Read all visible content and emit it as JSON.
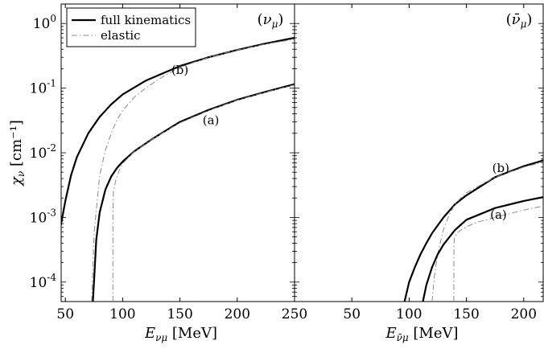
{
  "chart_data": [
    {
      "type": "line",
      "panel_label": "(νμ)",
      "xlabel_main": "E",
      "xlabel_sub": "νμ",
      "xlabel_unit": " [MeV]",
      "ylabel_main": "χ",
      "ylabel_sub": "ν",
      "ylabel_unit": " [cm⁻¹]",
      "xlim": [
        0,
        250
      ],
      "ylim": [
        5e-05,
        2
      ],
      "yscale": "log",
      "xticks": [
        50,
        100,
        150,
        200,
        250
      ],
      "yticks": [
        {
          "value": 0.0001,
          "base": "10",
          "exp": "-4"
        },
        {
          "value": 0.001,
          "base": "10",
          "exp": "-3"
        },
        {
          "value": 0.01,
          "base": "10",
          "exp": "-2"
        },
        {
          "value": 0.1,
          "base": "10",
          "exp": "-1"
        },
        {
          "value": 1,
          "base": "10",
          "exp": "0"
        }
      ],
      "legend": {
        "placement": "top-left",
        "entries": [
          {
            "label": "full kinematics",
            "style": "solid"
          },
          {
            "label": "elastic",
            "style": "dashdot"
          }
        ]
      },
      "series": [
        {
          "curve": "b",
          "style": "solid",
          "x": [
            36,
            40,
            45,
            50,
            55,
            60,
            70,
            80,
            90,
            100,
            120,
            150,
            175,
            200,
            225,
            250
          ],
          "y": [
            5e-05,
            0.00015,
            0.0006,
            0.0018,
            0.0045,
            0.0085,
            0.02,
            0.036,
            0.056,
            0.08,
            0.13,
            0.22,
            0.3,
            0.39,
            0.49,
            0.6
          ]
        },
        {
          "curve": "b",
          "style": "dashdot",
          "x": [
            73,
            75,
            80,
            85,
            90,
            95,
            100,
            110,
            120,
            135,
            150,
            175,
            200,
            225,
            250
          ],
          "y": [
            5e-05,
            0.00055,
            0.0045,
            0.011,
            0.02,
            0.032,
            0.045,
            0.072,
            0.1,
            0.15,
            0.21,
            0.3,
            0.39,
            0.48,
            0.57
          ]
        },
        {
          "curve": "a",
          "style": "solid",
          "x": [
            74,
            75,
            77,
            80,
            85,
            90,
            95,
            100,
            110,
            125,
            150,
            175,
            200,
            225,
            250
          ],
          "y": [
            5e-05,
            0.0001,
            0.00045,
            0.0012,
            0.0027,
            0.0043,
            0.0058,
            0.0073,
            0.0105,
            0.016,
            0.03,
            0.046,
            0.066,
            0.088,
            0.115
          ]
        },
        {
          "curve": "a",
          "style": "dashdot",
          "x": [
            91.5,
            91.6,
            92,
            94,
            97,
            100,
            105,
            110,
            125,
            150,
            175,
            200,
            225,
            250
          ],
          "y": [
            5e-05,
            0.0015,
            0.0025,
            0.0038,
            0.0053,
            0.0068,
            0.0085,
            0.0104,
            0.016,
            0.029,
            0.045,
            0.065,
            0.087,
            0.112
          ]
        }
      ],
      "annotations": [
        {
          "text": "(b)",
          "x": 150,
          "y": 0.19
        },
        {
          "text": "(a)",
          "x": 177,
          "y": 0.032
        }
      ]
    },
    {
      "type": "line",
      "panel_label": "(ν̄μ)",
      "xlabel_main": "E",
      "xlabel_sub": "ν̄μ",
      "xlabel_unit": " [MeV]",
      "xlim": [
        0,
        250
      ],
      "ylim": [
        5e-05,
        2
      ],
      "yscale": "log",
      "xticks": [
        50,
        100,
        150,
        200,
        250
      ],
      "series": [
        {
          "curve": "b",
          "style": "solid",
          "x": [
            96,
            100,
            105,
            110,
            115,
            120,
            130,
            140,
            150,
            175,
            200,
            225,
            250
          ],
          "y": [
            5e-05,
            0.0001,
            0.00017,
            0.00027,
            0.0004,
            0.00057,
            0.001,
            0.0016,
            0.0022,
            0.0042,
            0.0062,
            0.0084,
            0.0108
          ]
        },
        {
          "curve": "b",
          "style": "dashdot",
          "x": [
            120,
            122,
            125,
            130,
            135,
            140,
            145,
            150,
            175,
            200,
            225,
            250
          ],
          "y": [
            5e-05,
            0.00012,
            0.00028,
            0.00065,
            0.0011,
            0.0016,
            0.002,
            0.0024,
            0.0042,
            0.006,
            0.0078,
            0.0095
          ]
        },
        {
          "curve": "a",
          "style": "solid",
          "x": [
            112,
            115,
            120,
            125,
            130,
            140,
            150,
            175,
            200,
            225,
            250
          ],
          "y": [
            5e-05,
            9e-05,
            0.00017,
            0.00027,
            0.00038,
            0.00064,
            0.00092,
            0.0014,
            0.0018,
            0.0022,
            0.0026
          ]
        },
        {
          "curve": "a",
          "style": "dashdot",
          "x": [
            139,
            139.1,
            139.5,
            142,
            145,
            150,
            160,
            175,
            200,
            225,
            250
          ],
          "y": [
            5e-05,
            0.00035,
            0.00048,
            0.00058,
            0.00064,
            0.00072,
            0.00085,
            0.001,
            0.0013,
            0.0016,
            0.0019
          ]
        }
      ],
      "annotations": [
        {
          "text": "(b)",
          "x": 180,
          "y": 0.0058
        },
        {
          "text": "(a)",
          "x": 178,
          "y": 0.0011
        }
      ]
    }
  ]
}
